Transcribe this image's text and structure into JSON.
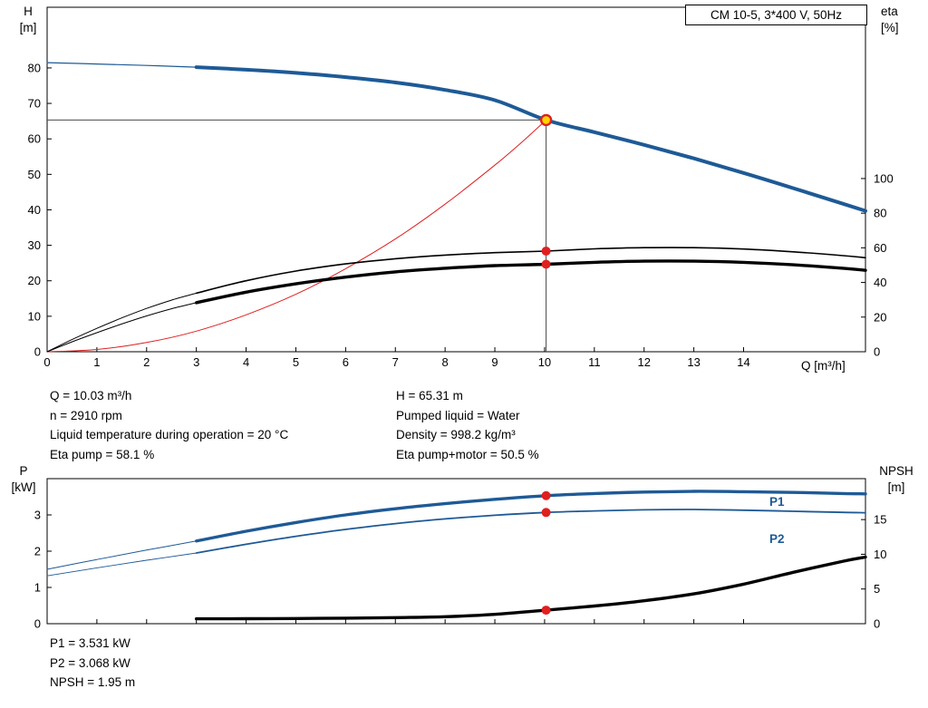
{
  "colors": {
    "blue": "#1e5a96",
    "red": "#e01f1f",
    "black": "#000000",
    "op_fill": "#ffd500",
    "crosshair": "#4a4a4a"
  },
  "chart_data": [
    {
      "name": "hq-eta-chart",
      "type": "line",
      "title": "CM 10-5, 3*400 V, 50Hz",
      "x_axis": {
        "label": "Q [m³/h]",
        "min": 0,
        "max": 16.45,
        "ticks": [
          0,
          1,
          2,
          3,
          4,
          5,
          6,
          7,
          8,
          9,
          10,
          11,
          12,
          13,
          14
        ],
        "show_tick_labels": true
      },
      "y_left": {
        "label": "H",
        "unit": "[m]",
        "min": 0,
        "max": 97.1,
        "ticks": [
          0,
          10,
          20,
          30,
          40,
          50,
          60,
          70,
          80
        ]
      },
      "y_right": {
        "label": "eta",
        "unit": "[%]",
        "min": 0,
        "max": 198.9,
        "ticks": [
          0,
          20,
          40,
          60,
          80,
          100
        ]
      },
      "series": [
        {
          "name": "hq-curve-lowflow",
          "axis": "left",
          "color": "blue",
          "width": 1.2,
          "points": [
            [
              0,
              81.5
            ],
            [
              1,
              81.1
            ],
            [
              2,
              80.7
            ],
            [
              3,
              80.2
            ]
          ]
        },
        {
          "name": "hq-curve",
          "axis": "left",
          "color": "blue",
          "width": 4,
          "points": [
            [
              3,
              80.2
            ],
            [
              4,
              79.5
            ],
            [
              5,
              78.6
            ],
            [
              6,
              77.4
            ],
            [
              7,
              75.9
            ],
            [
              8,
              73.8
            ],
            [
              9,
              70.9
            ],
            [
              10.03,
              65.31
            ],
            [
              11,
              61.9
            ],
            [
              12,
              58.3
            ],
            [
              13,
              54.5
            ],
            [
              14,
              50.4
            ],
            [
              15,
              46.1
            ],
            [
              16,
              41.7
            ],
            [
              16.45,
              39.7
            ]
          ]
        },
        {
          "name": "system-curve",
          "axis": "left",
          "color": "red",
          "width": 1,
          "points": [
            [
              0,
              0
            ],
            [
              1,
              0.65
            ],
            [
              2,
              2.6
            ],
            [
              3,
              5.8
            ],
            [
              4,
              10.4
            ],
            [
              5,
              16.2
            ],
            [
              6,
              23.4
            ],
            [
              7,
              31.8
            ],
            [
              8,
              41.6
            ],
            [
              9,
              52.6
            ],
            [
              9.6,
              59.8
            ],
            [
              10.03,
              65.31
            ]
          ]
        },
        {
          "name": "eta-pump-curve-lowflow",
          "axis": "right",
          "color": "black",
          "width": 1,
          "points": [
            [
              0,
              0
            ],
            [
              0.5,
              7
            ],
            [
              1,
              13.5
            ],
            [
              1.5,
              19.5
            ],
            [
              2,
              25
            ],
            [
              2.5,
              29.8
            ],
            [
              3,
              33.8
            ]
          ]
        },
        {
          "name": "eta-pump-curve",
          "axis": "right",
          "color": "black",
          "width": 1.6,
          "points": [
            [
              3,
              33.8
            ],
            [
              4,
              41
            ],
            [
              5,
              46.6
            ],
            [
              6,
              50.7
            ],
            [
              7,
              53.7
            ],
            [
              8,
              55.8
            ],
            [
              9,
              57.2
            ],
            [
              10.03,
              58.1
            ],
            [
              11,
              59.4
            ],
            [
              12,
              60.1
            ],
            [
              13,
              60.1
            ],
            [
              14,
              59.3
            ],
            [
              15,
              57.7
            ],
            [
              16,
              55.5
            ],
            [
              16.45,
              54.3
            ]
          ]
        },
        {
          "name": "eta-pump-motor-curve-lowflow",
          "axis": "right",
          "color": "black",
          "width": 1,
          "points": [
            [
              0,
              0
            ],
            [
              0.5,
              5.7
            ],
            [
              1,
              11
            ],
            [
              1.5,
              16
            ],
            [
              2,
              20.7
            ],
            [
              2.5,
              24.8
            ],
            [
              3,
              28.3
            ]
          ]
        },
        {
          "name": "eta-pump-motor-curve",
          "axis": "right",
          "color": "black",
          "width": 3.4,
          "points": [
            [
              3,
              28.3
            ],
            [
              4,
              34.4
            ],
            [
              5,
              39.2
            ],
            [
              6,
              43.1
            ],
            [
              7,
              46.1
            ],
            [
              8,
              48.2
            ],
            [
              9,
              49.7
            ],
            [
              10.03,
              50.5
            ],
            [
              11,
              51.6
            ],
            [
              12,
              52.3
            ],
            [
              13,
              52.3
            ],
            [
              14,
              51.6
            ],
            [
              15,
              50.2
            ],
            [
              16,
              48.2
            ],
            [
              16.45,
              47
            ]
          ]
        }
      ],
      "crosshair": {
        "q": 10.03,
        "v": 65.31
      },
      "markers": [
        {
          "name": "duty-point",
          "axis": "left",
          "q": 10.03,
          "v": 65.31,
          "r": 5.5,
          "fill": "op_fill",
          "stroke": "red",
          "stroke_width": 2.4
        },
        {
          "name": "eta-pump-point",
          "axis": "right",
          "q": 10.03,
          "v": 58.1,
          "r": 5,
          "fill": "red"
        },
        {
          "name": "eta-pump-motor-point",
          "axis": "right",
          "q": 10.03,
          "v": 50.5,
          "r": 5,
          "fill": "red"
        }
      ]
    },
    {
      "name": "power-npsh-chart",
      "type": "line",
      "x_axis": {
        "label": "",
        "min": 0,
        "max": 16.45,
        "ticks": [
          0,
          1,
          2,
          3,
          4,
          5,
          6,
          7,
          8,
          9,
          10,
          11,
          12,
          13,
          14
        ],
        "show_tick_labels": false
      },
      "y_left": {
        "label": "P",
        "unit": "[kW]",
        "min": 0,
        "max": 4,
        "ticks": [
          0,
          1,
          2,
          3
        ]
      },
      "y_right": {
        "label": "NPSH",
        "unit": "[m]",
        "min": 0,
        "max": 20.9,
        "ticks": [
          0,
          5,
          10,
          15
        ]
      },
      "series": [
        {
          "name": "p1-curve-lowflow",
          "axis": "left",
          "color": "blue",
          "width": 1,
          "points": [
            [
              0,
              1.5
            ],
            [
              1,
              1.77
            ],
            [
              2,
              2.03
            ],
            [
              3,
              2.28
            ]
          ]
        },
        {
          "name": "p1-curve",
          "axis": "left",
          "color": "blue",
          "width": 3.4,
          "points": [
            [
              3,
              2.28
            ],
            [
              4,
              2.55
            ],
            [
              5,
              2.79
            ],
            [
              6,
              3
            ],
            [
              7,
              3.17
            ],
            [
              8,
              3.31
            ],
            [
              9,
              3.43
            ],
            [
              10.03,
              3.531
            ],
            [
              11,
              3.59
            ],
            [
              12,
              3.63
            ],
            [
              13,
              3.65
            ],
            [
              14,
              3.64
            ],
            [
              15,
              3.62
            ],
            [
              16,
              3.59
            ],
            [
              16.45,
              3.58
            ]
          ]
        },
        {
          "name": "p2-curve-lowflow",
          "axis": "left",
          "color": "blue",
          "width": 0.9,
          "points": [
            [
              0,
              1.32
            ],
            [
              1,
              1.54
            ],
            [
              2,
              1.75
            ],
            [
              3,
              1.95
            ]
          ]
        },
        {
          "name": "p2-curve",
          "axis": "left",
          "color": "blue",
          "width": 1.8,
          "points": [
            [
              3,
              1.95
            ],
            [
              4,
              2.19
            ],
            [
              5,
              2.41
            ],
            [
              6,
              2.6
            ],
            [
              7,
              2.76
            ],
            [
              8,
              2.89
            ],
            [
              9,
              2.99
            ],
            [
              10.03,
              3.068
            ],
            [
              11,
              3.11
            ],
            [
              12,
              3.14
            ],
            [
              13,
              3.15
            ],
            [
              14,
              3.13
            ],
            [
              15,
              3.1
            ],
            [
              16,
              3.07
            ],
            [
              16.45,
              3.06
            ]
          ]
        },
        {
          "name": "npsh-curve",
          "axis": "right",
          "color": "black",
          "width": 3.4,
          "points": [
            [
              3,
              0.7
            ],
            [
              4,
              0.72
            ],
            [
              5,
              0.75
            ],
            [
              6,
              0.8
            ],
            [
              7,
              0.88
            ],
            [
              8,
              1
            ],
            [
              9,
              1.35
            ],
            [
              10.03,
              1.95
            ],
            [
              11,
              2.55
            ],
            [
              12,
              3.3
            ],
            [
              13,
              4.3
            ],
            [
              14,
              5.7
            ],
            [
              15,
              7.4
            ],
            [
              16,
              9
            ],
            [
              16.45,
              9.6
            ]
          ]
        }
      ],
      "markers": [
        {
          "name": "p1-point",
          "axis": "left",
          "q": 10.03,
          "v": 3.531,
          "r": 5,
          "fill": "red"
        },
        {
          "name": "p2-point",
          "axis": "left",
          "q": 10.03,
          "v": 3.068,
          "r": 5,
          "fill": "red"
        },
        {
          "name": "npsh-point",
          "axis": "right",
          "q": 10.03,
          "v": 1.95,
          "r": 5,
          "fill": "red"
        }
      ],
      "curve_labels": {
        "p1": "P1",
        "p2": "P2"
      }
    }
  ],
  "info_top": {
    "left": [
      "Q = 10.03 m³/h",
      "n = 2910 rpm",
      "Liquid temperature during operation = 20 °C",
      "Eta pump = 58.1 %"
    ],
    "right": [
      "H = 65.31 m",
      "Pumped liquid = Water",
      "Density = 998.2 kg/m³",
      "Eta pump+motor = 50.5 %"
    ]
  },
  "info_bottom": [
    "P1 = 3.531 kW",
    "P2 = 3.068 kW",
    "NPSH = 1.95 m"
  ]
}
